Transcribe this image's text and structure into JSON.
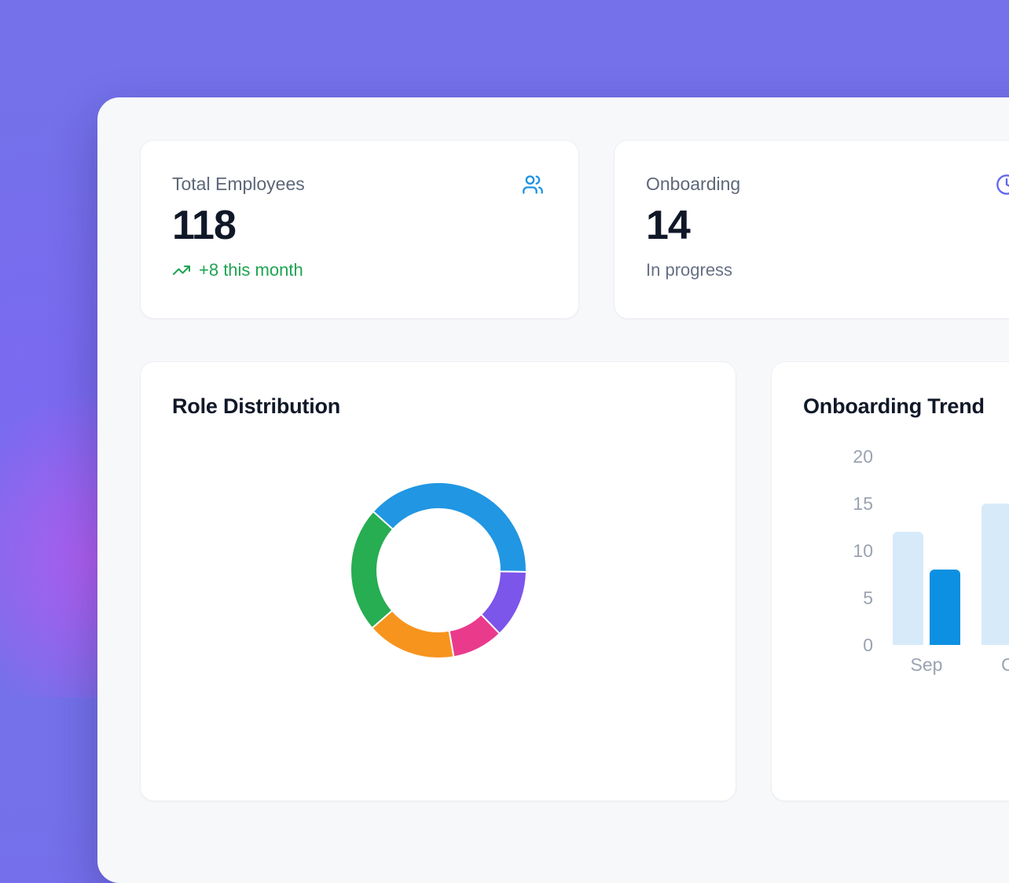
{
  "theme": {
    "background_purple": "#7471ea",
    "glow_pink": "#d852f0",
    "panel_bg": "#f7f8fa",
    "card_bg": "#ffffff",
    "text_dark": "#101828",
    "text_gray": "#5d6878",
    "axis_gray": "#9aa3b2"
  },
  "stat_cards": [
    {
      "label": "Total Employees",
      "value": "118",
      "trend_text": "+8 this month",
      "trend_color": "#1ea452",
      "icon": "users-icon",
      "icon_color": "#1b93e4"
    },
    {
      "label": "Onboarding",
      "value": "14",
      "subtext": "In progress",
      "subtext_color": "#667085",
      "icon": "clock-icon",
      "icon_color": "#6366f1"
    }
  ],
  "chart_data": [
    {
      "type": "donut",
      "title": "Role Distribution",
      "legend_position": "none-visible",
      "segments": [
        {
          "name": "blue",
          "color": "#2196e3",
          "start_deg": 312,
          "sweep_deg": 139,
          "percent": 38.6
        },
        {
          "name": "violet",
          "color": "#7c55ea",
          "start_deg": 91,
          "sweep_deg": 45,
          "percent": 12.5
        },
        {
          "name": "pink",
          "color": "#ea3a8c",
          "start_deg": 136,
          "sweep_deg": 34,
          "percent": 9.4
        },
        {
          "name": "orange",
          "color": "#f7941d",
          "start_deg": 170,
          "sweep_deg": 59,
          "percent": 16.4
        },
        {
          "name": "green",
          "color": "#27ad52",
          "start_deg": 229,
          "sweep_deg": 83,
          "percent": 23.1
        }
      ]
    },
    {
      "type": "bar",
      "title": "Onboarding Trend",
      "categories": [
        "Sep",
        "Oct"
      ],
      "series": [
        {
          "name": "light-blue",
          "color": "#d7eafa",
          "values": [
            12,
            15
          ]
        },
        {
          "name": "dark-blue",
          "color": "#0d90e2",
          "values": [
            8,
            null
          ]
        }
      ],
      "yticks": [
        0,
        5,
        10,
        15,
        20
      ],
      "ylim": [
        0,
        20
      ],
      "grid": false
    }
  ]
}
